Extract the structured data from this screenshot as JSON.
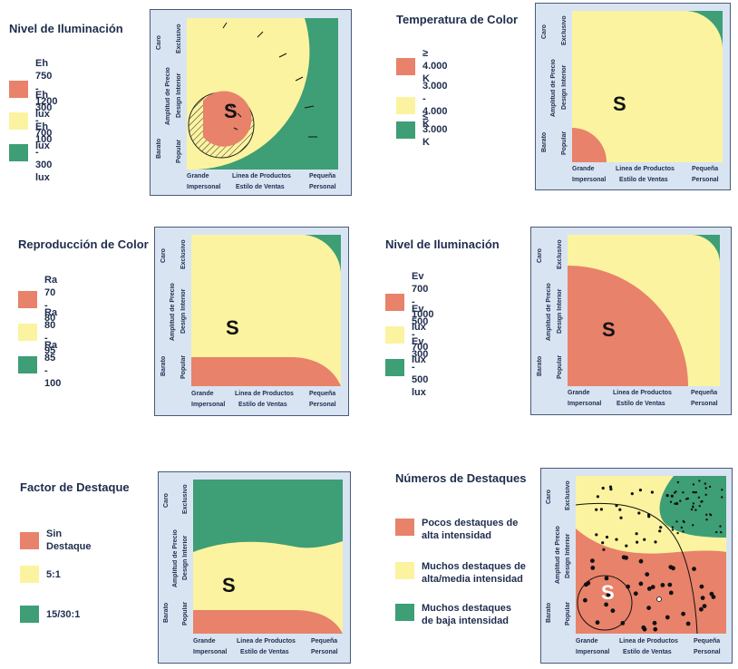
{
  "colors": {
    "red": "#e8826a",
    "yellow": "#fbf3a0",
    "green": "#3e9e76",
    "panel_bg": "#d8e4f2",
    "text": "#1f2d4d"
  },
  "axis": {
    "precio_label": "Amplitud de Precio",
    "caro": "Caro",
    "barato": "Barato",
    "exclusivo": "Exclusivo",
    "design_interior": "Design Interior",
    "popular": "Popular",
    "grande": "Grande",
    "linea": "Linea de Productos",
    "pequena": "Pequeña",
    "impersonal": "Impersonal",
    "estilo": "Estilo de Ventas",
    "personal": "Personal"
  },
  "s_letter": "S",
  "panels": [
    {
      "title": "Nivel de Iluminación",
      "legend": [
        {
          "label": "Eh 750 - 1200 lux",
          "color": "red"
        },
        {
          "label": "Eh 300 - 700 lux",
          "color": "yellow"
        },
        {
          "label": "Eh 100 - 300 lux",
          "color": "green"
        }
      ]
    },
    {
      "title": "Temperatura de Color",
      "legend": [
        {
          "label": "≥ 4.000 K",
          "color": "red"
        },
        {
          "label": "3.000 - 4.000 K",
          "color": "yellow"
        },
        {
          "label": "≤ 3.000 K",
          "color": "green"
        }
      ]
    },
    {
      "title": "Reproducción de Color",
      "legend": [
        {
          "label": "Ra 70 - 80",
          "color": "red"
        },
        {
          "label": "Ra 80 - 95",
          "color": "yellow"
        },
        {
          "label": "Ra 85 - 100",
          "color": "green"
        }
      ]
    },
    {
      "title": "Nivel de Iluminación",
      "legend": [
        {
          "label": "Ev 700 - 1000 lux",
          "color": "red"
        },
        {
          "label": "Ev 500 - 700 lux",
          "color": "yellow"
        },
        {
          "label": "Ev 300 - 500 lux",
          "color": "green"
        }
      ]
    },
    {
      "title": "Factor de Destaque",
      "legend": [
        {
          "label": "Sin Destaque",
          "color": "red"
        },
        {
          "label": "5:1",
          "color": "yellow"
        },
        {
          "label": "15/30:1",
          "color": "green"
        }
      ]
    },
    {
      "title": "Números de Destaques",
      "legend": [
        {
          "label": "Pocos destaques de alta intensidad",
          "color": "red"
        },
        {
          "label": "Muchos destaques de alta/media intensidad",
          "color": "yellow"
        },
        {
          "label": "Muchos destaques de baja intensidad",
          "color": "green"
        }
      ]
    }
  ]
}
